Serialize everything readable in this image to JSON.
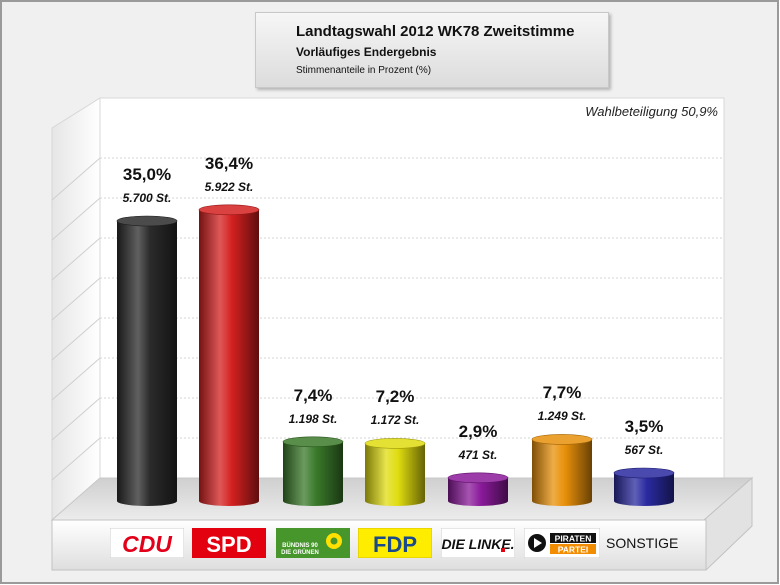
{
  "chart_data": {
    "type": "bar",
    "title": "Landtagswahl 2012 WK78 Zweitstimme",
    "subtitle": "Vorläufiges Endergebnis",
    "ylabel": "Stimmenanteile in Prozent (%)",
    "annotation": "Wahlbeteiligung 50,9%",
    "ylim": [
      0,
      40
    ],
    "grid": true,
    "categories": [
      "CDU",
      "SPD",
      "Grüne",
      "FDP",
      "Die Linke",
      "Piraten",
      "SONSTIGE"
    ],
    "values": [
      35.0,
      36.4,
      7.4,
      7.2,
      2.9,
      7.7,
      3.5
    ],
    "value_labels": [
      "35,0%",
      "36,4%",
      "7,4%",
      "7,2%",
      "2,9%",
      "7,7%",
      "3,5%"
    ],
    "vote_labels": [
      "5.700 St.",
      "5.922 St.",
      "1.198 St.",
      "1.172 St.",
      "471 St.",
      "1.249 St.",
      "567 St."
    ],
    "colors": [
      "#2b2b2b",
      "#d42020",
      "#3a7a2a",
      "#e0dc10",
      "#8a1a9a",
      "#e8900a",
      "#2a2aa0"
    ]
  },
  "logos": {
    "cdu": "CDU",
    "spd": "SPD",
    "gruene_line1": "BÜNDNIS 90",
    "gruene_line2": "DIE GRÜNEN",
    "fdp": "FDP",
    "linke": "DIE LINKE.",
    "piraten_line1": "PIRATEN",
    "piraten_line2": "PARTEI",
    "sonstige": "SONSTIGE"
  }
}
